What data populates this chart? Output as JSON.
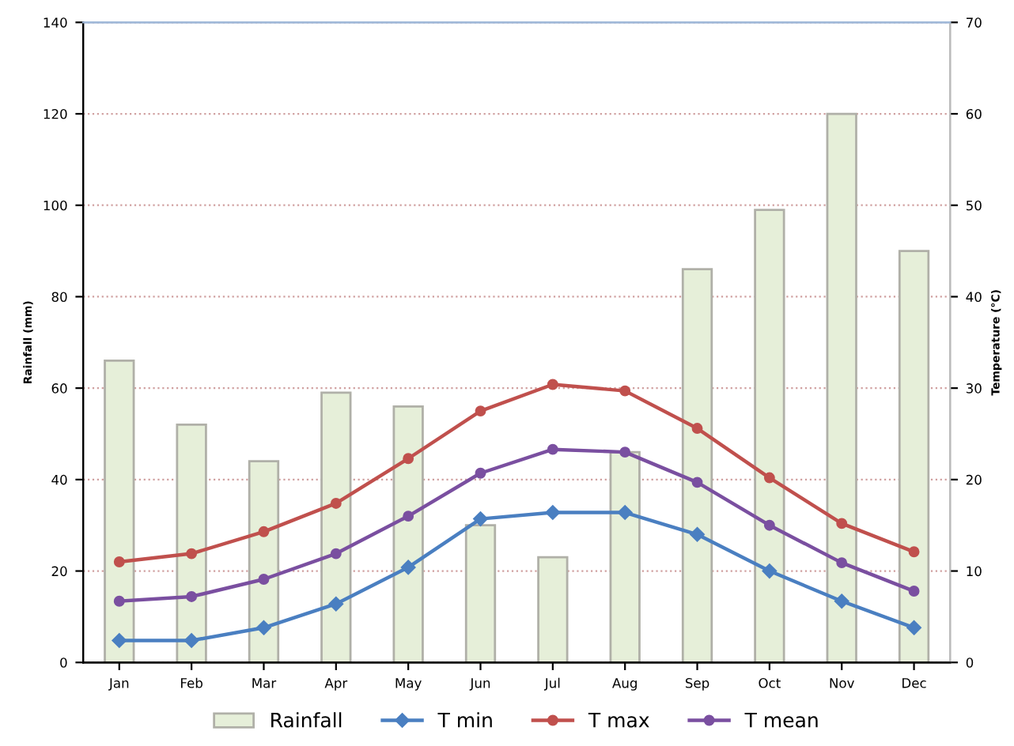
{
  "chart_data": {
    "type": "bar",
    "categories": [
      "Jan",
      "Feb",
      "Mar",
      "Apr",
      "May",
      "Jun",
      "Jul",
      "Aug",
      "Sep",
      "Oct",
      "Nov",
      "Dec"
    ],
    "ylabel": "Rainfall (mm)",
    "y2label": "Temperature (°C)",
    "ylim": [
      0,
      140
    ],
    "yticks": [
      0,
      20,
      40,
      60,
      80,
      100,
      120,
      140
    ],
    "y2lim": [
      0,
      70
    ],
    "y2ticks": [
      0,
      10,
      20,
      30,
      40,
      50,
      60,
      70
    ],
    "grid": "y",
    "legend": "bottom",
    "series": [
      {
        "name": "Rainfall",
        "color": "#e6efd9",
        "values": [
          66,
          52,
          44,
          59,
          56,
          30,
          23,
          46,
          86,
          99,
          120,
          90
        ]
      },
      {
        "name": "T min",
        "type": "line",
        "axis": "y2",
        "marker": "diamond",
        "color": "#4a7fc1",
        "values": [
          2.4,
          2.4,
          3.8,
          6.4,
          10.4,
          15.7,
          16.4,
          16.4,
          14,
          10,
          6.7,
          3.8
        ]
      },
      {
        "name": "T max",
        "type": "line",
        "axis": "y2",
        "marker": "circle",
        "color": "#c0504d",
        "values": [
          11,
          11.9,
          14.3,
          17.4,
          22.3,
          27.5,
          30.4,
          29.7,
          25.6,
          20.2,
          15.2,
          12.1
        ]
      },
      {
        "name": "T mean",
        "type": "line",
        "axis": "y2",
        "marker": "circle",
        "color": "#7a4fa0",
        "values": [
          6.7,
          7.2,
          9.1,
          11.9,
          16,
          20.7,
          23.3,
          23,
          19.7,
          15,
          10.9,
          7.8
        ]
      }
    ]
  }
}
